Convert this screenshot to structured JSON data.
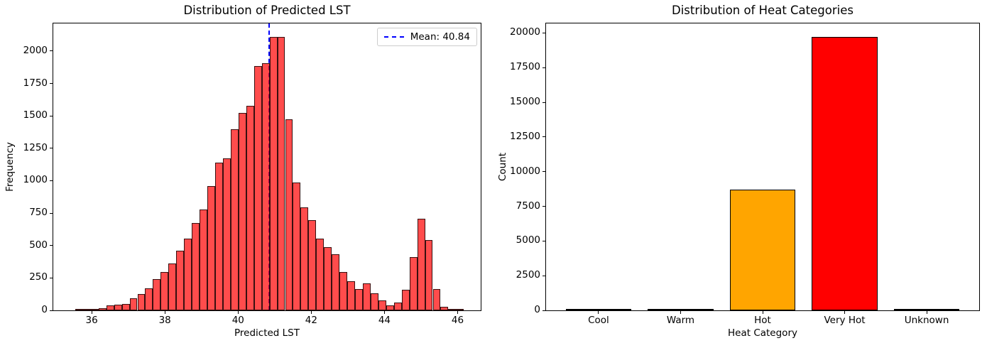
{
  "chart_data": [
    {
      "type": "histogram",
      "title": "Distribution of Predicted LST",
      "xlabel": "Predicted LST",
      "ylabel": "Frequency",
      "legend_label": "Mean: 40.84",
      "mean": 40.84,
      "mean_line_color": "#0000ff",
      "mean_line_style": "dashed",
      "bar_fill_color": "rgba(255,0,0,0.7)",
      "bar_edge_color": "rgba(0,0,0,0.78)",
      "bin_start": 35.55,
      "bin_width": 0.2124,
      "frequencies": [
        3,
        6,
        6,
        18,
        38,
        42,
        51,
        93,
        124,
        169,
        242,
        297,
        364,
        459,
        552,
        675,
        776,
        959,
        1142,
        1173,
        1395,
        1521,
        1578,
        1887,
        1908,
        2108,
        2108,
        1472,
        988,
        797,
        697,
        551,
        488,
        433,
        297,
        224,
        164,
        206,
        133,
        78,
        37,
        60,
        160,
        410,
        706,
        542,
        164,
        27,
        5,
        2
      ],
      "xlim": [
        34.95,
        46.63
      ],
      "ylim": [
        0,
        2213
      ],
      "xticks": [
        36,
        38,
        40,
        42,
        44,
        46
      ],
      "yticks": [
        0,
        250,
        500,
        750,
        1000,
        1250,
        1500,
        1750,
        2000
      ],
      "grid": false,
      "legend_position": "upper right"
    },
    {
      "type": "bar",
      "title": "Distribution of Heat Categories",
      "xlabel": "Heat Category",
      "ylabel": "Count",
      "categories": [
        "Cool",
        "Warm",
        "Hot",
        "Very Hot",
        "Unknown"
      ],
      "values": [
        40,
        60,
        8700,
        19700,
        30
      ],
      "bar_colors": [
        "#cccccc",
        "#cccccc",
        "#ffa500",
        "#ff0000",
        "#cccccc"
      ],
      "bar_edge_color": "#000000",
      "bar_rel_width": 0.8,
      "ylim": [
        0,
        20685
      ],
      "yticks": [
        0,
        2500,
        5000,
        7500,
        10000,
        12500,
        15000,
        17500,
        20000
      ],
      "grid": false
    }
  ]
}
